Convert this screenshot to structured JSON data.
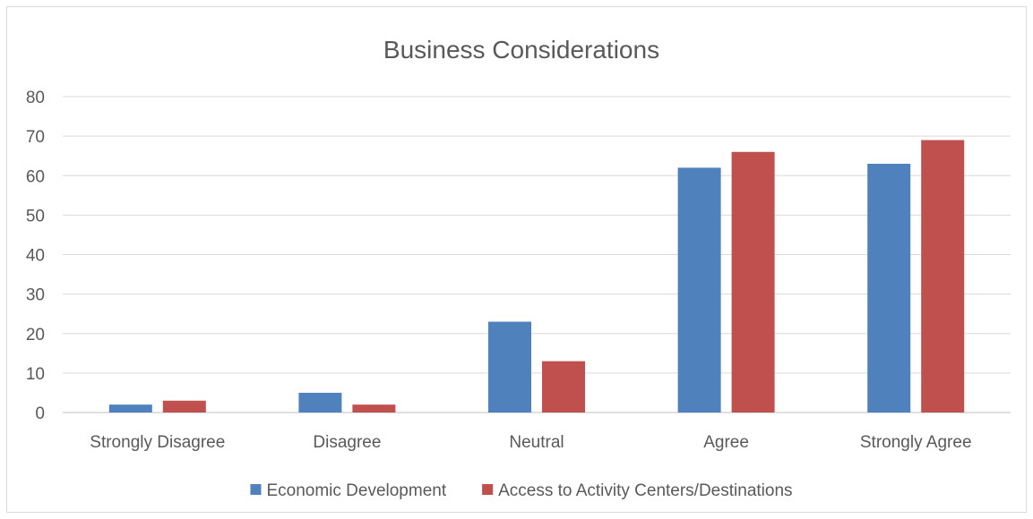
{
  "chart_data": {
    "type": "bar",
    "title": "Business Considerations",
    "xlabel": "",
    "ylabel": "",
    "categories": [
      "Strongly Disagree",
      "Disagree",
      "Neutral",
      "Agree",
      "Strongly Agree"
    ],
    "series": [
      {
        "name": "Economic Development",
        "values": [
          2,
          5,
          23,
          62,
          63
        ],
        "color": "#4f81bd"
      },
      {
        "name": "Access to Activity Centers/Destinations",
        "values": [
          3,
          2,
          13,
          66,
          69
        ],
        "color": "#c0504d"
      }
    ],
    "ylim": [
      0,
      80
    ],
    "yticks": [
      0,
      10,
      20,
      30,
      40,
      50,
      60,
      70,
      80
    ],
    "grid": true,
    "legend_position": "bottom"
  }
}
